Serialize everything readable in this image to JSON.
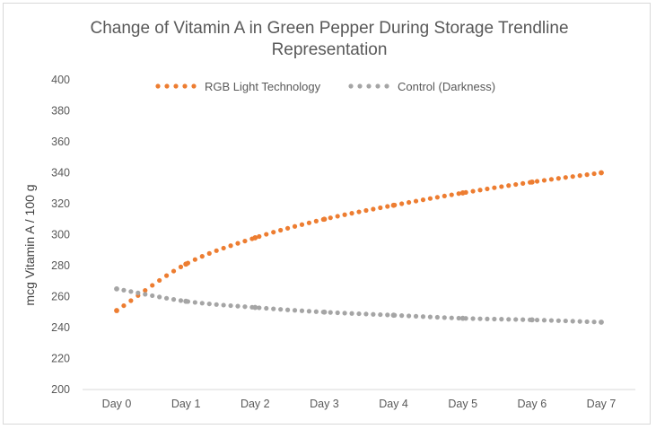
{
  "chart_data": {
    "type": "line",
    "title_lines": [
      "Change of Vitamin A in Green Pepper During Storage Trendline",
      "Representation"
    ],
    "ylabel": "mcg Vitamin A / 100 g",
    "xlabel": "",
    "categories": [
      "Day 0",
      "Day 1",
      "Day 2",
      "Day 3",
      "Day 4",
      "Day 5",
      "Day 6",
      "Day 7"
    ],
    "ylim": [
      200,
      400
    ],
    "ytick_step": 20,
    "yticks": [
      "400",
      "380",
      "360",
      "340",
      "320",
      "300",
      "280",
      "260",
      "240",
      "220",
      "200"
    ],
    "legend_position": "top-center",
    "grid": false,
    "series": [
      {
        "name": "RGB Light Technology",
        "color": "#ED7D31",
        "style": "dotted",
        "values": [
          251,
          281,
          298,
          310,
          319,
          327,
          334,
          340
        ]
      },
      {
        "name": "Control (Darkness)",
        "color": "#A5A5A5",
        "style": "dotted",
        "values": [
          265,
          257,
          253,
          250,
          248,
          246,
          245,
          243.5
        ]
      }
    ]
  }
}
